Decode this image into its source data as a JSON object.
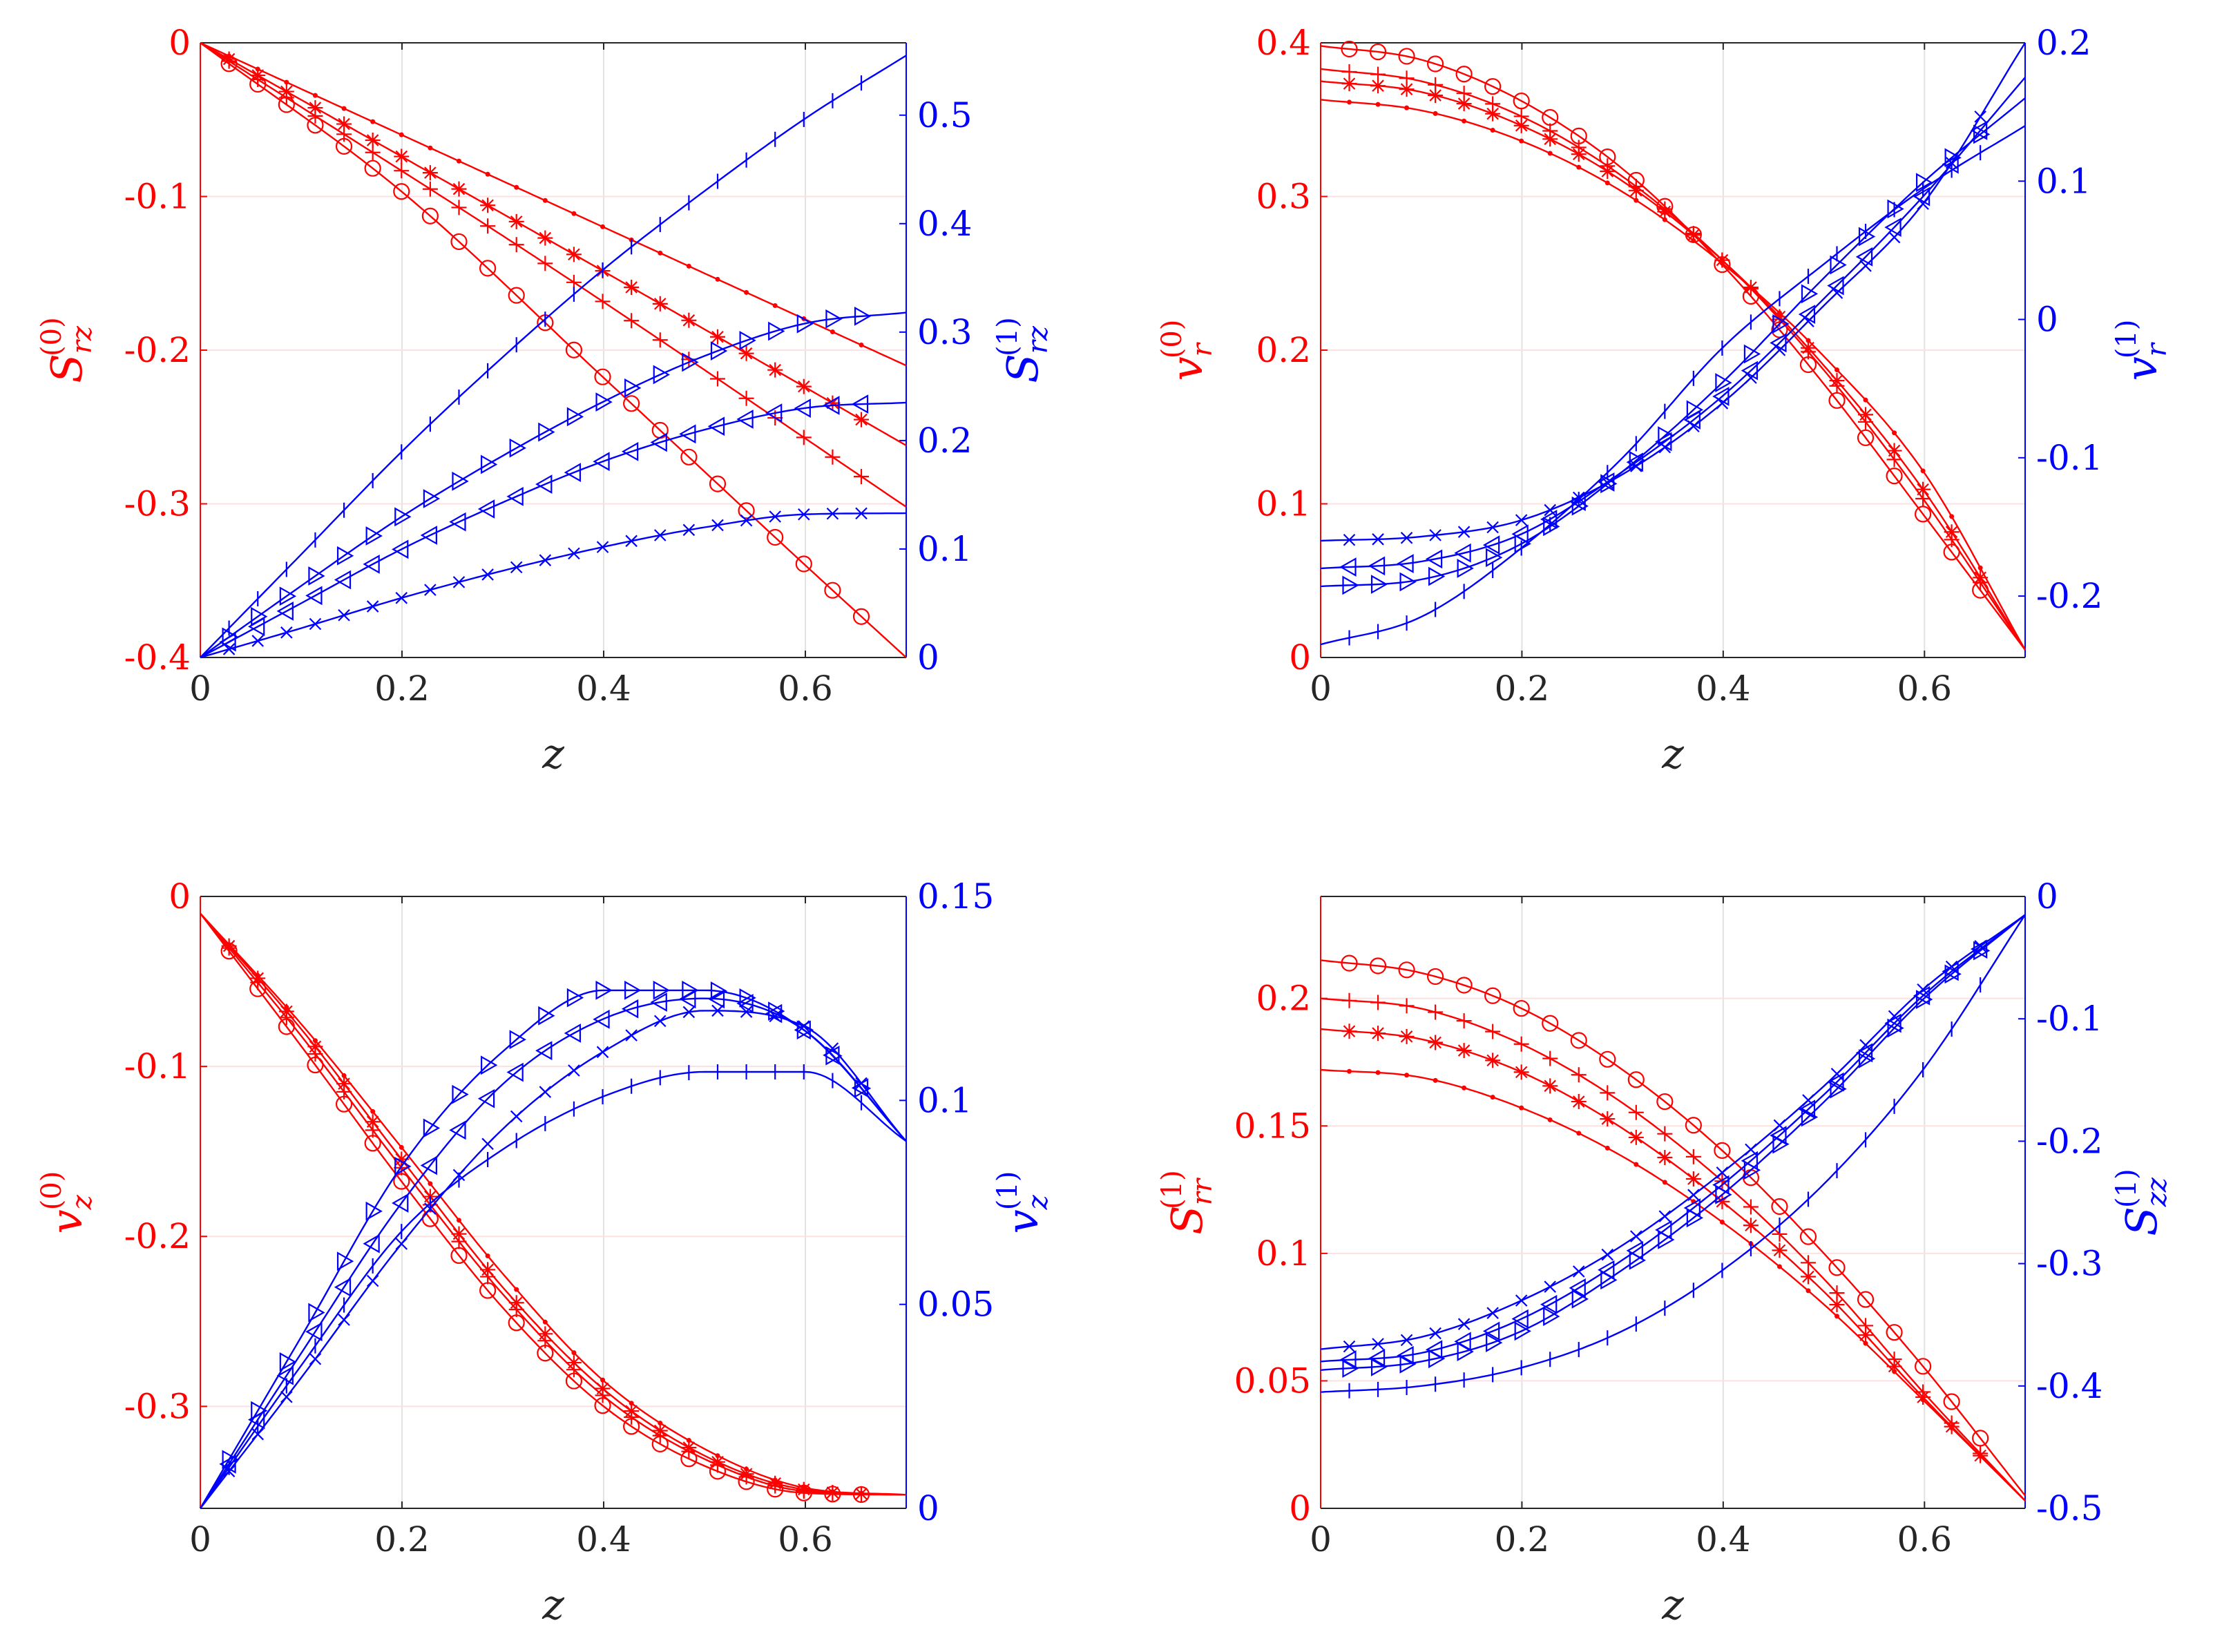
{
  "colors": {
    "left_axis": "#ff0000",
    "right_axis": "#0000ff",
    "x_axis": "#262626"
  },
  "chart_data": [
    {
      "type": "line",
      "position": "top-left",
      "xlabel": "z",
      "xlim": [
        0,
        0.7
      ],
      "xticks": [
        "0",
        "0.2",
        "0.4",
        "0.6"
      ],
      "ylabel_left": {
        "sym": "S",
        "sub": "rz",
        "sup": "(0)"
      },
      "ylim_left": [
        -0.4,
        0
      ],
      "yticks_left": [
        "-0.4",
        "-0.3",
        "-0.2",
        "-0.1",
        "0"
      ],
      "ylabel_right": {
        "sym": "S",
        "sub": "rz",
        "sup": "(1)"
      },
      "ylim_right": [
        0,
        0.5667
      ],
      "yticks_right": [
        "0",
        "0.1",
        "0.2",
        "0.3",
        "0.4",
        "0.5"
      ],
      "series": [
        {
          "axis": "left",
          "marker": "dot",
          "x": [
            0,
            0.35,
            0.7
          ],
          "y": [
            0,
            -0.105,
            -0.21
          ]
        },
        {
          "axis": "left",
          "marker": "star",
          "x": [
            0,
            0.35,
            0.7
          ],
          "y": [
            0,
            -0.13,
            -0.262
          ]
        },
        {
          "axis": "left",
          "marker": "plus",
          "x": [
            0,
            0.35,
            0.7
          ],
          "y": [
            0,
            -0.147,
            -0.302
          ]
        },
        {
          "axis": "left",
          "marker": "circle",
          "x": [
            0,
            0.2,
            0.4,
            0.6,
            0.7
          ],
          "y": [
            0,
            -0.097,
            -0.218,
            -0.34,
            -0.4
          ]
        },
        {
          "axis": "right",
          "marker": "vbar",
          "x": [
            0,
            0.1,
            0.2,
            0.3,
            0.4,
            0.5,
            0.6,
            0.7
          ],
          "y": [
            0,
            0.095,
            0.19,
            0.277,
            0.358,
            0.43,
            0.497,
            0.555
          ]
        },
        {
          "axis": "right",
          "marker": "triangle-right",
          "x": [
            0,
            0.1,
            0.2,
            0.3,
            0.4,
            0.5,
            0.6,
            0.7
          ],
          "y": [
            0,
            0.066,
            0.13,
            0.186,
            0.236,
            0.278,
            0.308,
            0.318
          ]
        },
        {
          "axis": "right",
          "marker": "triangle-left",
          "x": [
            0,
            0.1,
            0.2,
            0.3,
            0.4,
            0.5,
            0.6,
            0.7
          ],
          "y": [
            0,
            0.05,
            0.1,
            0.143,
            0.181,
            0.21,
            0.23,
            0.235
          ]
        },
        {
          "axis": "right",
          "marker": "x",
          "x": [
            0,
            0.1,
            0.2,
            0.3,
            0.4,
            0.5,
            0.6,
            0.7
          ],
          "y": [
            0,
            0.027,
            0.055,
            0.08,
            0.102,
            0.12,
            0.132,
            0.133
          ]
        }
      ]
    },
    {
      "type": "line",
      "position": "top-right",
      "xlabel": "z",
      "xlim": [
        0,
        0.7
      ],
      "xticks": [
        "0",
        "0.2",
        "0.4",
        "0.6"
      ],
      "ylabel_left": {
        "sym": "v",
        "sub": "r",
        "sup": "(0)"
      },
      "ylim_left": [
        0,
        0.4
      ],
      "yticks_left": [
        "0",
        "0.1",
        "0.2",
        "0.3",
        "0.4"
      ],
      "ylabel_right": {
        "sym": "v",
        "sub": "r",
        "sup": "(1)"
      },
      "ylim_right": [
        -0.2444,
        0.2
      ],
      "yticks_right": [
        "-0.2",
        "-0.1",
        "0",
        "0.1",
        "0.2"
      ],
      "series": [
        {
          "axis": "left",
          "marker": "dot",
          "x": [
            0,
            0.1,
            0.2,
            0.3,
            0.4,
            0.5,
            0.6,
            0.7
          ],
          "y": [
            0.363,
            0.356,
            0.336,
            0.303,
            0.256,
            0.196,
            0.12,
            0.005
          ]
        },
        {
          "axis": "left",
          "marker": "star",
          "x": [
            0,
            0.1,
            0.2,
            0.3,
            0.4,
            0.5,
            0.6,
            0.7
          ],
          "y": [
            0.375,
            0.368,
            0.346,
            0.31,
            0.258,
            0.19,
            0.108,
            0.005
          ]
        },
        {
          "axis": "left",
          "marker": "plus",
          "x": [
            0,
            0.1,
            0.2,
            0.3,
            0.4,
            0.5,
            0.6,
            0.7
          ],
          "y": [
            0.383,
            0.375,
            0.352,
            0.313,
            0.258,
            0.187,
            0.102,
            0.005
          ]
        },
        {
          "axis": "left",
          "marker": "circle",
          "x": [
            0,
            0.1,
            0.2,
            0.3,
            0.4,
            0.5,
            0.6,
            0.7
          ],
          "y": [
            0.398,
            0.389,
            0.362,
            0.318,
            0.255,
            0.178,
            0.092,
            0.005
          ]
        },
        {
          "axis": "right",
          "marker": "x",
          "x": [
            0,
            0.1,
            0.2,
            0.3,
            0.4,
            0.5,
            0.6,
            0.7
          ],
          "y": [
            -0.16,
            -0.157,
            -0.145,
            -0.112,
            -0.06,
            0.01,
            0.085,
            0.2
          ]
        },
        {
          "axis": "right",
          "marker": "triangle-left",
          "x": [
            0,
            0.1,
            0.2,
            0.3,
            0.4,
            0.5,
            0.6,
            0.7
          ],
          "y": [
            -0.18,
            -0.175,
            -0.155,
            -0.11,
            -0.055,
            0.015,
            0.09,
            0.175
          ]
        },
        {
          "axis": "right",
          "marker": "triangle-right",
          "x": [
            0,
            0.1,
            0.2,
            0.3,
            0.4,
            0.5,
            0.6,
            0.7
          ],
          "y": [
            -0.193,
            -0.188,
            -0.162,
            -0.11,
            -0.045,
            0.03,
            0.1,
            0.16
          ]
        },
        {
          "axis": "right",
          "marker": "vbar",
          "x": [
            0,
            0.1,
            0.2,
            0.3,
            0.4,
            0.5,
            0.6,
            0.7
          ],
          "y": [
            -0.235,
            -0.215,
            -0.165,
            -0.1,
            -0.02,
            0.04,
            0.095,
            0.14
          ]
        }
      ]
    },
    {
      "type": "line",
      "position": "bottom-left",
      "xlabel": "z",
      "xlim": [
        0,
        0.7
      ],
      "xticks": [
        "0",
        "0.2",
        "0.4",
        "0.6"
      ],
      "ylabel_left": {
        "sym": "v",
        "sub": "z",
        "sup": "(0)"
      },
      "ylim_left": [
        -0.36,
        0
      ],
      "yticks_left": [
        "-0.3",
        "-0.2",
        "-0.1",
        "0"
      ],
      "ylabel_right": {
        "sym": "v",
        "sub": "z",
        "sup": "(1)"
      },
      "ylim_right": [
        0,
        0.15
      ],
      "yticks_right": [
        "0",
        "0.05",
        "0.1",
        "0.15"
      ],
      "series": [
        {
          "axis": "left",
          "marker": "dot",
          "x": [
            0,
            0.1,
            0.2,
            0.3,
            0.4,
            0.5,
            0.6,
            0.7
          ],
          "y": [
            -0.01,
            -0.075,
            -0.148,
            -0.222,
            -0.285,
            -0.325,
            -0.348,
            -0.352
          ]
        },
        {
          "axis": "left",
          "marker": "star",
          "x": [
            0,
            0.1,
            0.2,
            0.3,
            0.4,
            0.5,
            0.6,
            0.7
          ],
          "y": [
            -0.01,
            -0.078,
            -0.155,
            -0.23,
            -0.29,
            -0.329,
            -0.349,
            -0.352
          ]
        },
        {
          "axis": "left",
          "marker": "plus",
          "x": [
            0,
            0.1,
            0.2,
            0.3,
            0.4,
            0.5,
            0.6,
            0.7
          ],
          "y": [
            -0.01,
            -0.082,
            -0.16,
            -0.234,
            -0.294,
            -0.331,
            -0.35,
            -0.352
          ]
        },
        {
          "axis": "left",
          "marker": "circle",
          "x": [
            0,
            0.1,
            0.2,
            0.3,
            0.4,
            0.5,
            0.6,
            0.7
          ],
          "y": [
            -0.01,
            -0.088,
            -0.168,
            -0.242,
            -0.3,
            -0.335,
            -0.351,
            -0.352
          ]
        },
        {
          "axis": "right",
          "marker": "triangle-right",
          "x": [
            0,
            0.1,
            0.2,
            0.3,
            0.4,
            0.5,
            0.6,
            0.7
          ],
          "y": [
            0,
            0.042,
            0.084,
            0.112,
            0.127,
            0.127,
            0.117,
            0.09
          ]
        },
        {
          "axis": "right",
          "marker": "triangle-left",
          "x": [
            0,
            0.1,
            0.2,
            0.3,
            0.4,
            0.5,
            0.6,
            0.7
          ],
          "y": [
            0,
            0.038,
            0.075,
            0.104,
            0.12,
            0.125,
            0.117,
            0.09
          ]
        },
        {
          "axis": "right",
          "marker": "x",
          "x": [
            0,
            0.1,
            0.2,
            0.3,
            0.4,
            0.5,
            0.6,
            0.7
          ],
          "y": [
            0,
            0.032,
            0.065,
            0.093,
            0.112,
            0.122,
            0.118,
            0.09
          ]
        },
        {
          "axis": "right",
          "marker": "vbar",
          "x": [
            0,
            0.1,
            0.2,
            0.3,
            0.4,
            0.5,
            0.6,
            0.7
          ],
          "y": [
            0,
            0.035,
            0.068,
            0.088,
            0.101,
            0.107,
            0.107,
            0.09
          ]
        }
      ]
    },
    {
      "type": "line",
      "position": "bottom-right",
      "xlabel": "z",
      "xlim": [
        0,
        0.7
      ],
      "xticks": [
        "0",
        "0.2",
        "0.4",
        "0.6"
      ],
      "ylabel_left": {
        "sym": "S",
        "sub": "rr",
        "sup": "(1)"
      },
      "ylim_left": [
        0,
        0.24
      ],
      "yticks_left": [
        "0",
        "0.05",
        "0.1",
        "0.15",
        "0.2"
      ],
      "ylabel_right": {
        "sym": "S",
        "sub": "zz",
        "sup": "(1)"
      },
      "ylim_right": [
        -0.5,
        0
      ],
      "yticks_right": [
        "-0.5",
        "-0.4",
        "-0.3",
        "-0.2",
        "-0.1",
        "0"
      ],
      "series": [
        {
          "axis": "left",
          "marker": "circle",
          "x": [
            0,
            0.1,
            0.2,
            0.3,
            0.4,
            0.5,
            0.6,
            0.7
          ],
          "y": [
            0.215,
            0.21,
            0.196,
            0.172,
            0.14,
            0.1,
            0.055,
            0.005
          ]
        },
        {
          "axis": "left",
          "marker": "plus",
          "x": [
            0,
            0.1,
            0.2,
            0.3,
            0.4,
            0.5,
            0.6,
            0.7
          ],
          "y": [
            0.2,
            0.196,
            0.182,
            0.159,
            0.128,
            0.09,
            0.045,
            0.003
          ]
        },
        {
          "axis": "left",
          "marker": "star",
          "x": [
            0,
            0.1,
            0.2,
            0.3,
            0.4,
            0.5,
            0.6,
            0.7
          ],
          "y": [
            0.188,
            0.184,
            0.171,
            0.149,
            0.12,
            0.085,
            0.043,
            0.003
          ]
        },
        {
          "axis": "left",
          "marker": "dot",
          "x": [
            0,
            0.1,
            0.2,
            0.3,
            0.4,
            0.5,
            0.6,
            0.7
          ],
          "y": [
            0.172,
            0.169,
            0.157,
            0.138,
            0.112,
            0.08,
            0.042,
            0.003
          ]
        },
        {
          "axis": "right",
          "marker": "x",
          "x": [
            0,
            0.1,
            0.2,
            0.3,
            0.4,
            0.5,
            0.6,
            0.7
          ],
          "y": [
            -0.37,
            -0.36,
            -0.33,
            -0.285,
            -0.225,
            -0.155,
            -0.075,
            -0.015
          ]
        },
        {
          "axis": "right",
          "marker": "triangle-left",
          "x": [
            0,
            0.1,
            0.2,
            0.3,
            0.4,
            0.5,
            0.6,
            0.7
          ],
          "y": [
            -0.38,
            -0.373,
            -0.345,
            -0.297,
            -0.235,
            -0.162,
            -0.08,
            -0.015
          ]
        },
        {
          "axis": "right",
          "marker": "triangle-right",
          "x": [
            0,
            0.1,
            0.2,
            0.3,
            0.4,
            0.5,
            0.6,
            0.7
          ],
          "y": [
            -0.387,
            -0.38,
            -0.355,
            -0.305,
            -0.243,
            -0.168,
            -0.083,
            -0.015
          ]
        },
        {
          "axis": "right",
          "marker": "vbar",
          "x": [
            0,
            0.1,
            0.2,
            0.3,
            0.4,
            0.5,
            0.6,
            0.7
          ],
          "y": [
            -0.405,
            -0.4,
            -0.385,
            -0.355,
            -0.305,
            -0.235,
            -0.14,
            -0.015
          ]
        }
      ]
    }
  ]
}
